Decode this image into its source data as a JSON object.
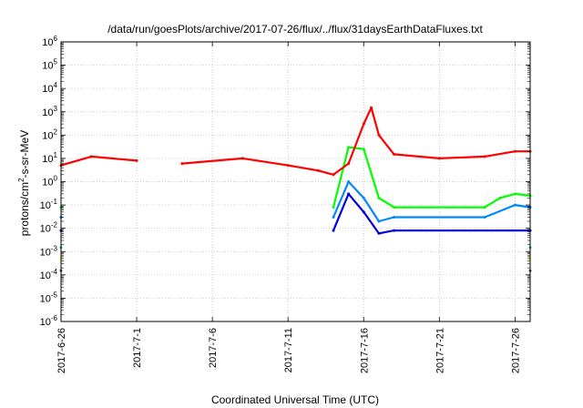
{
  "chart_data": {
    "type": "line",
    "title": "/data/run/goesPlots/archive/2017-07-26/flux/../flux/31daysEarthDataFluxes.txt",
    "xlabel": "Coordinated Universal Time (UTC)",
    "ylabel": {
      "base": "protons/cm",
      "sup": "2",
      "rest": "-s-sr-MeV"
    },
    "xlim": [
      "2017-06-26",
      "2017-07-27"
    ],
    "ylim_exponents": [
      -6,
      6
    ],
    "y_scale": "log",
    "y_tick_base": "10",
    "y_tick_exponents": [
      "-6",
      "-5",
      "-4",
      "-3",
      "-2",
      "-1",
      "0",
      "1",
      "2",
      "3",
      "4",
      "5",
      "6"
    ],
    "x_ticks": [
      "2017-6-26",
      "2017-7-1",
      "2017-7-6",
      "2017-7-11",
      "2017-7-16",
      "2017-7-21",
      "2017-7-26"
    ],
    "grid": true,
    "data_gap": {
      "start": "2017-07-03",
      "end": "2017-07-04"
    },
    "series": [
      {
        "color": "#ff0000",
        "x": [
          "2017-06-26",
          "2017-06-28",
          "2017-07-01",
          "2017-07-04",
          "2017-07-08",
          "2017-07-11",
          "2017-07-13",
          "2017-07-14",
          "2017-07-15",
          "2017-07-16",
          "2017-07-16 12:00",
          "2017-07-17",
          "2017-07-18",
          "2017-07-21",
          "2017-07-24",
          "2017-07-26",
          "2017-07-27"
        ],
        "y": [
          5,
          12,
          8,
          6,
          10,
          5,
          3,
          2,
          6,
          300,
          1500,
          100,
          15,
          10,
          12,
          20,
          20
        ]
      },
      {
        "color": "#00ff00",
        "x": [
          "2017-06-26",
          "2017-07-14",
          "2017-07-15",
          "2017-07-16",
          "2017-07-17",
          "2017-07-18",
          "2017-07-24",
          "2017-07-25",
          "2017-07-26",
          "2017-07-27"
        ],
        "y": [
          0.08,
          0.08,
          30,
          25,
          0.2,
          0.08,
          0.08,
          0.2,
          0.3,
          0.25
        ]
      },
      {
        "color": "#0088ff",
        "x": [
          "2017-06-26",
          "2017-07-14",
          "2017-07-15",
          "2017-07-16",
          "2017-07-17",
          "2017-07-18",
          "2017-07-24",
          "2017-07-26",
          "2017-07-27"
        ],
        "y": [
          0.03,
          0.03,
          1,
          0.2,
          0.02,
          0.03,
          0.03,
          0.1,
          0.08
        ]
      },
      {
        "color": "#0000dd",
        "x": [
          "2017-06-26",
          "2017-07-14",
          "2017-07-15",
          "2017-07-16",
          "2017-07-17",
          "2017-07-18",
          "2017-07-27"
        ],
        "y": [
          0.008,
          0.008,
          0.3,
          0.05,
          0.006,
          0.008,
          0.008
        ]
      },
      {
        "color": "#00c8a0",
        "x": [
          "2017-06-26",
          "2017-07-27"
        ],
        "y": [
          0.0015,
          0.0015
        ]
      },
      {
        "color": "#ffff00",
        "x": [
          "2017-06-26",
          "2017-07-27"
        ],
        "y": [
          0.0005,
          0.0005
        ]
      },
      {
        "color": "#993366",
        "x": [
          "2017-06-26",
          "2017-07-27"
        ],
        "y": [
          0.00015,
          0.00015
        ]
      }
    ]
  }
}
